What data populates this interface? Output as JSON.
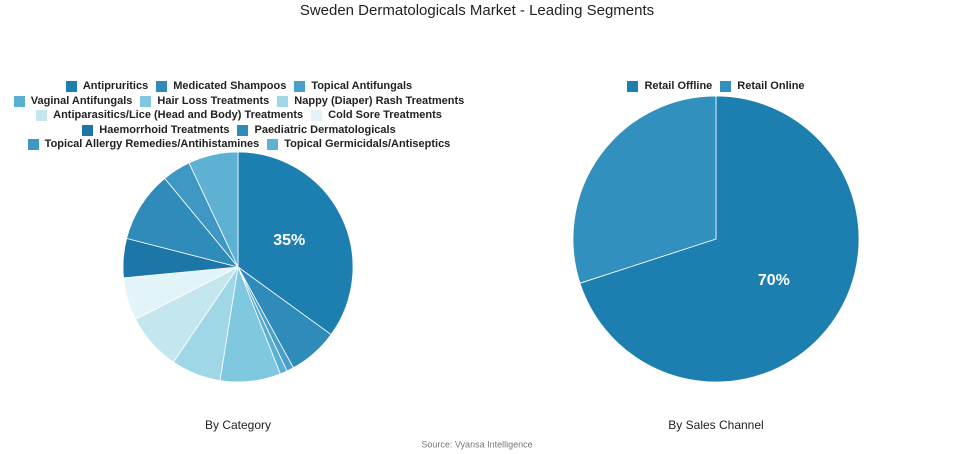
{
  "title": "Sweden Dermatologicals Market - Leading Segments",
  "source": "Source: Vyansa Intelligence",
  "chart_data": [
    {
      "type": "pie",
      "title": "By Category",
      "categories": [
        "Antipruritics",
        "Medicated Shampoos",
        "Topical Antifungals",
        "Vaginal Antifungals",
        "Hair Loss Treatments",
        "Nappy (Diaper) Rash Treatments",
        "Antiparasitics/Lice (Head and Body) Treatments",
        "Cold Sore Treatments",
        "Haemorrhoid Treatments",
        "Paediatric Dermatologicals",
        "Topical Allergy Remedies/Antihistamines",
        "Topical Germicidals/Antiseptics"
      ],
      "values": [
        35,
        7,
        1,
        1,
        8.5,
        7,
        8,
        6,
        5.5,
        10,
        4,
        7
      ],
      "value_labels": [
        "35%",
        null,
        null,
        null,
        null,
        null,
        null,
        null,
        null,
        null,
        null,
        null
      ],
      "colors": [
        "#1c7fb0",
        "#2e8bba",
        "#4a9fc8",
        "#5ab0d2",
        "#80c8e0",
        "#a0d7e7",
        "#c4e7ef",
        "#e2f4f8",
        "#1c76a8",
        "#2e8bba",
        "#3f98c4",
        "#5eb1d3"
      ]
    },
    {
      "type": "pie",
      "title": "By Sales Channel",
      "categories": [
        "Retail Offline",
        "Retail Online"
      ],
      "values": [
        70,
        30
      ],
      "value_labels": [
        "70%",
        null
      ],
      "colors": [
        "#1c7fb0",
        "#3190bd"
      ]
    }
  ]
}
